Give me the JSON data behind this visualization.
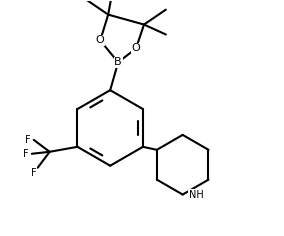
{
  "background_color": "#ffffff",
  "line_color": "#000000",
  "line_width": 1.5,
  "font_size_atom": 8,
  "font_size_nh": 7,
  "figsize": [
    2.84,
    2.36
  ],
  "dpi": 100,
  "xlim": [
    0,
    2.84
  ],
  "ylim": [
    0,
    2.36
  ]
}
